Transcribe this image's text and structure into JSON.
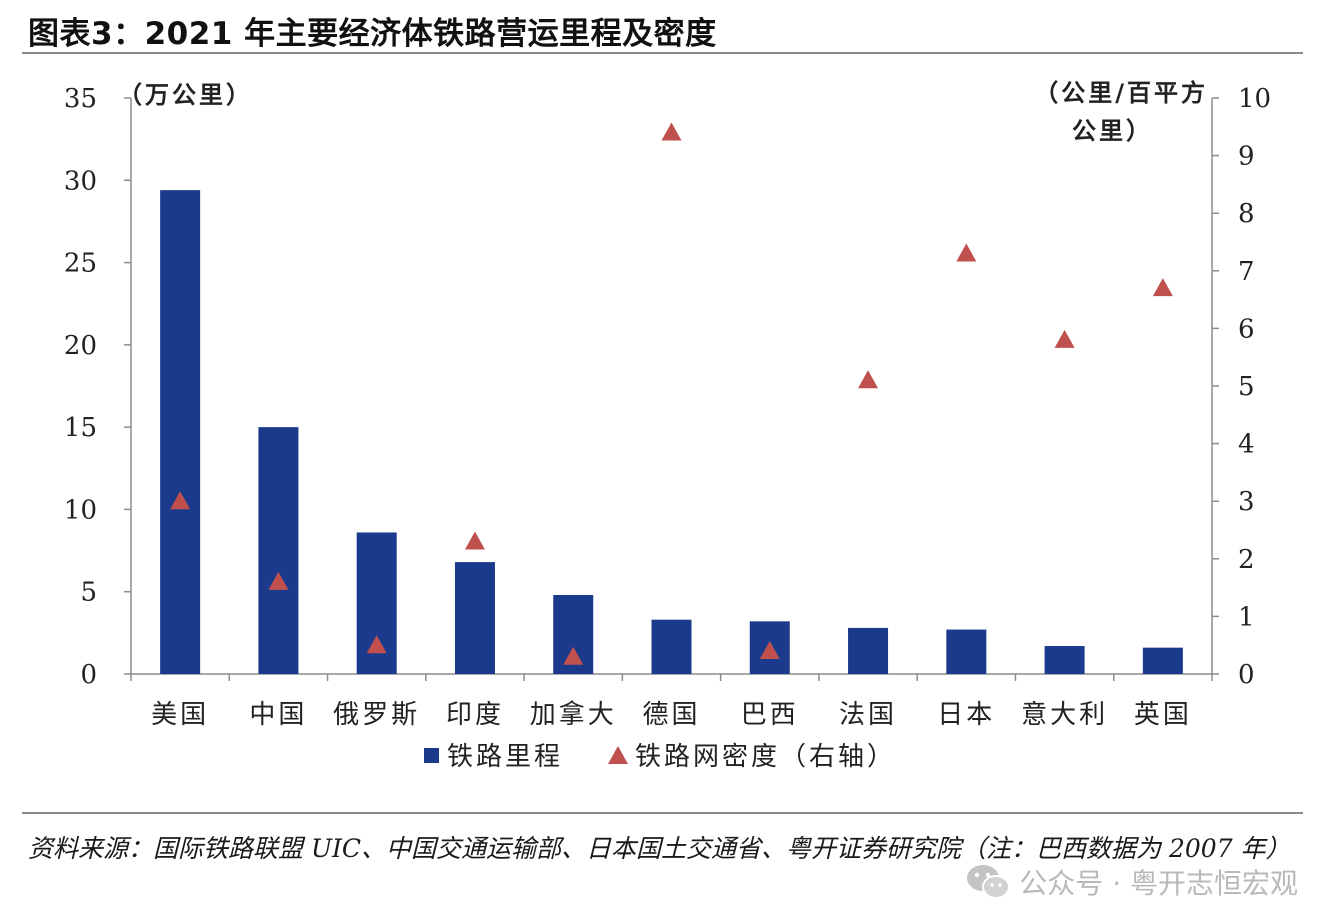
{
  "title": "图表3：2021 年主要经济体铁路营运里程及密度",
  "chart_data": {
    "type": "bar",
    "categories": [
      "美国",
      "中国",
      "俄罗斯",
      "印度",
      "加拿大",
      "德国",
      "巴西",
      "法国",
      "日本",
      "意大利",
      "英国"
    ],
    "series": [
      {
        "name": "铁路里程",
        "type": "bar",
        "axis": "left",
        "color": "#1b3a8c",
        "values": [
          29.4,
          15.0,
          8.6,
          6.8,
          4.8,
          3.3,
          3.2,
          2.8,
          2.7,
          1.7,
          1.6
        ]
      },
      {
        "name": "铁路网密度（右轴）",
        "type": "scatter",
        "marker": "triangle",
        "axis": "right",
        "color": "#c0504d",
        "values": [
          3.0,
          1.6,
          0.5,
          2.3,
          0.3,
          9.4,
          0.4,
          5.1,
          7.3,
          5.8,
          6.7
        ]
      }
    ],
    "yleft": {
      "unit_label": "（万公里）",
      "range": [
        0,
        35
      ],
      "ticks": [
        "0",
        "5",
        "10",
        "15",
        "20",
        "25",
        "30",
        "35"
      ]
    },
    "yright": {
      "unit_label_line1": "（公里/百平方",
      "unit_label_line2": "公里）",
      "range": [
        0,
        10
      ],
      "ticks": [
        "0",
        "1",
        "2",
        "3",
        "4",
        "5",
        "6",
        "7",
        "8",
        "9",
        "10"
      ]
    },
    "legend": {
      "placement": "bottom",
      "items": [
        "铁路里程",
        "铁路网密度（右轴）"
      ]
    },
    "grid": false
  },
  "source": "资料来源：国际铁路联盟 UIC、中国交通运输部、日本国土交通省、粤开证券研究院（注：巴西数据为 2007 年）",
  "watermark": {
    "icon": "wechat-icon",
    "text": "公众号 · 粤开志恒宏观"
  }
}
